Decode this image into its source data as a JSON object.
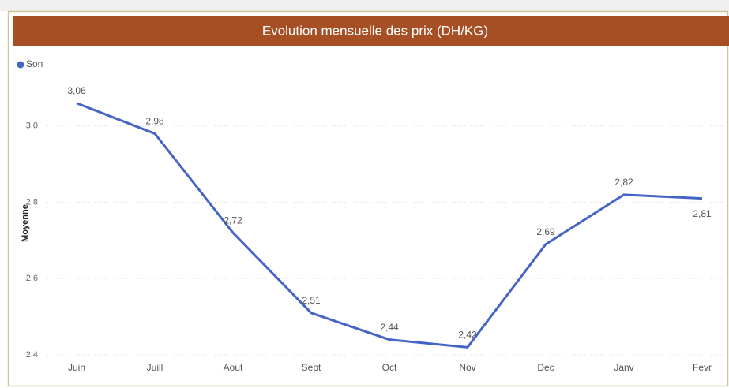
{
  "chart_data": {
    "type": "line",
    "title": "Evolution mensuelle des prix (DH/KG)",
    "y_label": "Moyenne",
    "categories": [
      "Juin",
      "Juill",
      "Aout",
      "Sept",
      "Oct",
      "Nov",
      "Dec",
      "Janv",
      "Fevr"
    ],
    "series": [
      {
        "name": "Son",
        "color": "#4565c6",
        "values": [
          3.06,
          2.98,
          2.72,
          2.51,
          2.44,
          2.42,
          2.69,
          2.82,
          2.81
        ],
        "value_labels": [
          "3,06",
          "2,98",
          "2,72",
          "2,51",
          "2,44",
          "2,42",
          "2,69",
          "2,82",
          "2,81"
        ]
      }
    ],
    "ylim": [
      2.4,
      3.2
    ],
    "yticks": [
      {
        "value": 2.4,
        "label": "2,4"
      },
      {
        "value": 2.6,
        "label": "2,6"
      },
      {
        "value": 2.8,
        "label": "2,8"
      },
      {
        "value": 3.0,
        "label": "3,0"
      }
    ],
    "grid": true,
    "legend": "top-left"
  }
}
